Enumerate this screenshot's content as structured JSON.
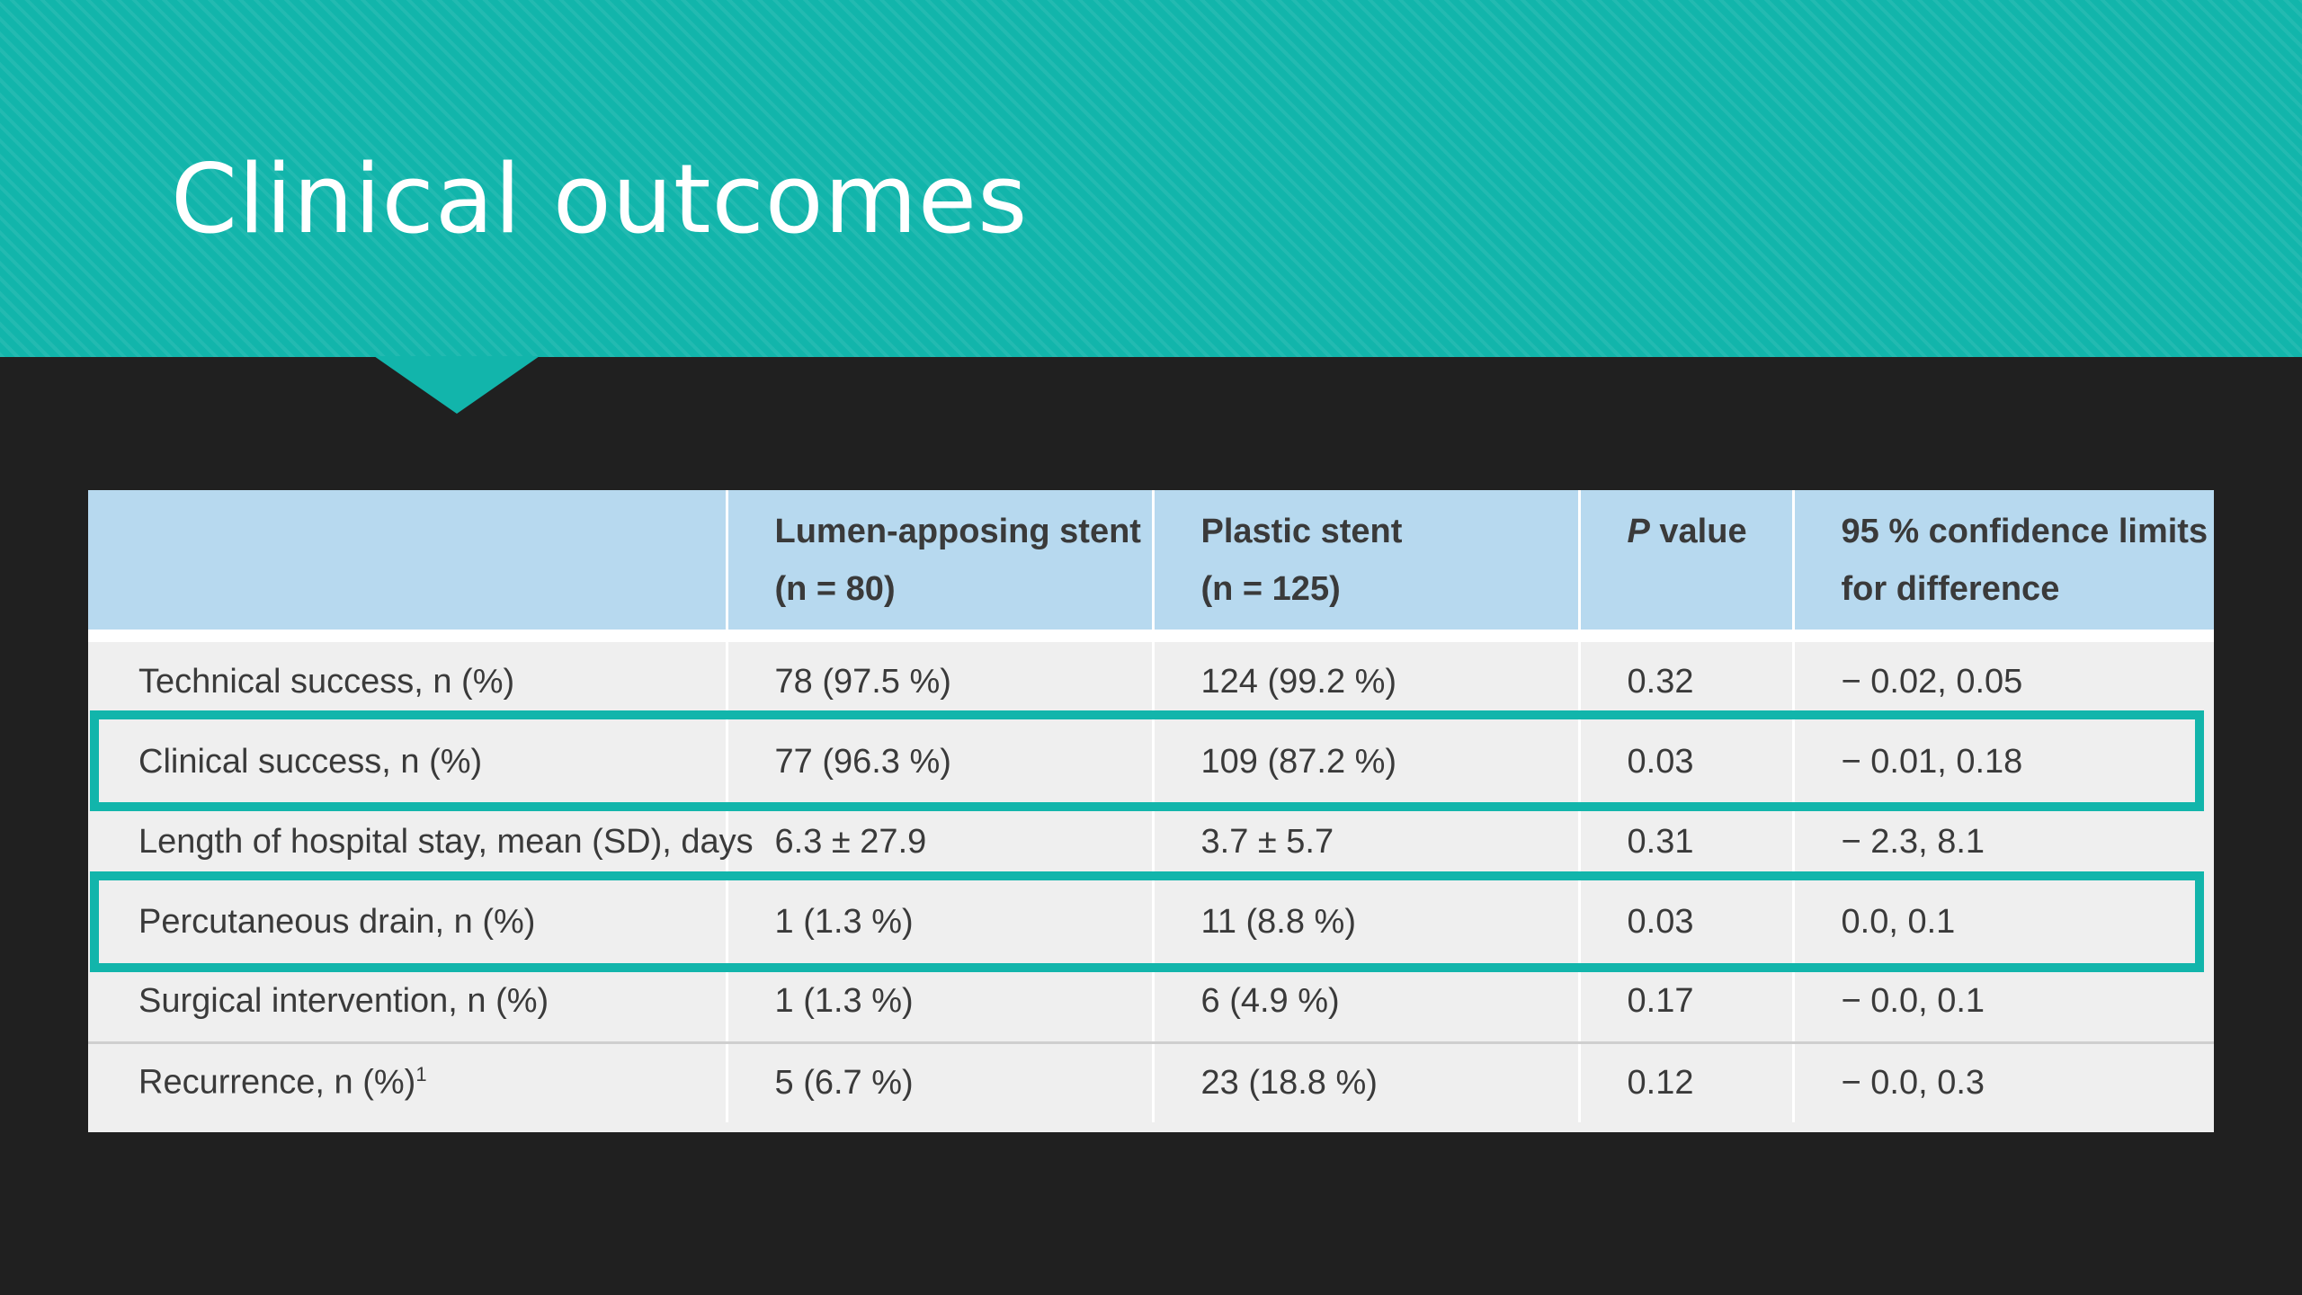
{
  "slide": {
    "title": "Clinical outcomes"
  },
  "colors": {
    "accent": "#12b5ab",
    "background": "#202020",
    "header_row": "#b7d9ef"
  },
  "table": {
    "headers": [
      {
        "line1": "",
        "line2": ""
      },
      {
        "line1": "Lumen-apposing stent",
        "line2": "(n = 80)"
      },
      {
        "line1": "Plastic stent",
        "line2": "(n = 125)"
      },
      {
        "line1_italic": "P",
        "line1": " value",
        "line2": ""
      },
      {
        "line1": "95 % confidence limits",
        "line2": "for difference"
      }
    ],
    "rows": [
      {
        "label": "Technical success, n (%)",
        "las": "78 (97.5 %)",
        "ps": "124 (99.2 %)",
        "p": "0.32",
        "ci": "− 0.02, 0.05",
        "highlighted": false
      },
      {
        "label": "Clinical success, n (%)",
        "las": "77 (96.3 %)",
        "ps": "109 (87.2 %)",
        "p": "0.03",
        "ci": "− 0.01, 0.18",
        "highlighted": true
      },
      {
        "label": "Length of hospital stay, mean (SD), days",
        "las": "6.3 ± 27.9",
        "ps": "3.7 ± 5.7",
        "p": "0.31",
        "ci": "− 2.3, 8.1",
        "highlighted": false
      },
      {
        "label": "Percutaneous drain, n (%)",
        "las": "1 (1.3 %)",
        "ps": "11 (8.8 %)",
        "p": "0.03",
        "ci": "0.0, 0.1",
        "highlighted": true
      },
      {
        "label": "Surgical intervention, n (%)",
        "las": "1 (1.3 %)",
        "ps": "6 (4.9 %)",
        "p": "0.17",
        "ci": "− 0.0, 0.1",
        "highlighted": false
      },
      {
        "label": "Recurrence, n (%)",
        "label_sup": "1",
        "las": "5 (6.7 %)",
        "ps": "23 (18.8 %)",
        "p": "0.12",
        "ci": "− 0.0, 0.3",
        "highlighted": false
      }
    ]
  }
}
